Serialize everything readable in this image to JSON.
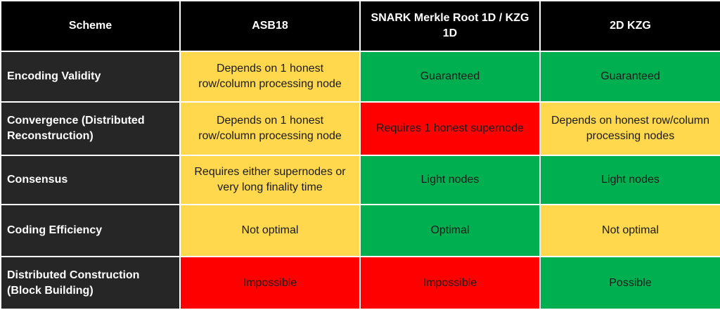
{
  "header": {
    "scheme": "Scheme",
    "asb18": "ASB18",
    "snark": "SNARK Merkle Root 1D / KZG 1D",
    "kzg2d": "2D KZG"
  },
  "rows": [
    {
      "label": "Encoding Validity",
      "asb18": "Depends on 1 honest row/column processing node",
      "snark": "Guaranteed",
      "kzg2d": "Guaranteed"
    },
    {
      "label": "Convergence (Distributed Reconstruction)",
      "asb18": "Depends on 1 honest row/column processing node",
      "snark": "Requires 1 honest supernode",
      "kzg2d": "Depends on honest row/column processing nodes"
    },
    {
      "label": "Consensus",
      "asb18": "Requires either supernodes or very long finality time",
      "snark": "Light nodes",
      "kzg2d": "Light nodes"
    },
    {
      "label": "Coding Efficiency",
      "asb18": "Not optimal",
      "snark": "Optimal",
      "kzg2d": "Not optimal"
    },
    {
      "label": "Distributed Construction (Block Building)",
      "asb18": "Impossible",
      "snark": "Impossible",
      "kzg2d": "Possible"
    }
  ],
  "colors": {
    "header_bg": "#000000",
    "rowhead_bg": "#262626",
    "yellow": "#ffd84d",
    "green": "#00b050",
    "red": "#ff0000"
  }
}
